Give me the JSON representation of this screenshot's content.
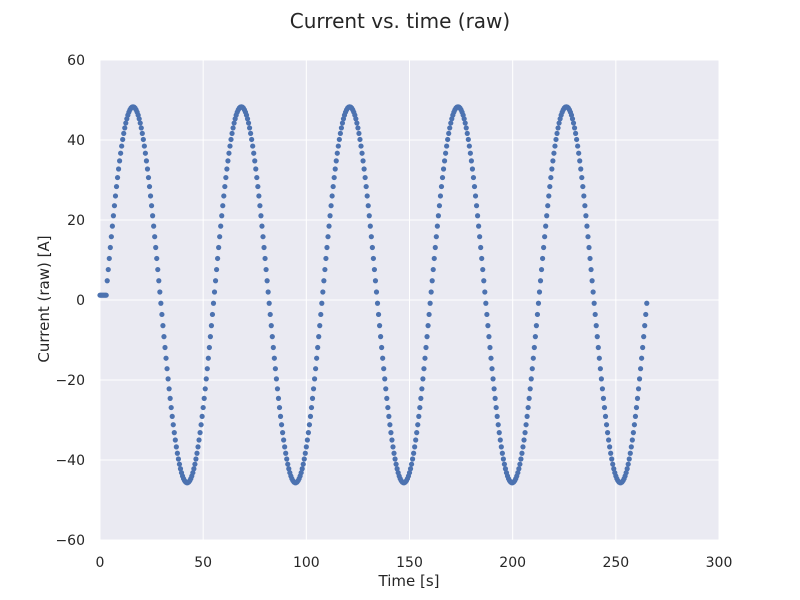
{
  "chart_data": {
    "type": "scatter",
    "title": "Current vs. time (raw)",
    "xlabel": "Time [s]",
    "ylabel": "Current (raw) [A]",
    "xlim": [
      0,
      300
    ],
    "ylim": [
      -60,
      60
    ],
    "xticks": [
      0,
      50,
      100,
      150,
      200,
      250,
      300
    ],
    "yticks": [
      -60,
      -40,
      -20,
      0,
      20,
      40,
      60
    ],
    "xtick_labels": [
      "0",
      "50",
      "100",
      "150",
      "200",
      "250",
      "300"
    ],
    "ytick_labels": [
      "−60",
      "−40",
      "−20",
      "0",
      "20",
      "40",
      "60"
    ],
    "grid": true,
    "style": "seaborn-darkgrid",
    "colors": {
      "plot_background": "#EAEAF2",
      "grid": "#FFFFFF",
      "marker": "#4C72B0",
      "text": "#262626"
    },
    "series": [
      {
        "x_start": 0,
        "x_end": 265,
        "x_step": 0.5,
        "plateau_end": 3,
        "plateau_value": 1.2,
        "amplitude": 47,
        "offset": 1.3,
        "period": 52.5,
        "peak_time": 16
      }
    ]
  }
}
